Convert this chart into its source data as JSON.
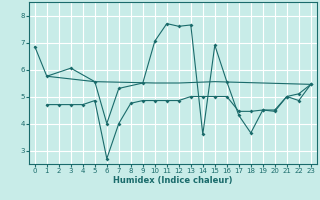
{
  "xlabel": "Humidex (Indice chaleur)",
  "bg_color": "#c8ece8",
  "grid_color": "#ffffff",
  "line_color": "#1a6b6b",
  "xlim": [
    -0.5,
    23.5
  ],
  "ylim": [
    2.5,
    8.5
  ],
  "yticks": [
    3,
    4,
    5,
    6,
    7,
    8
  ],
  "xticks": [
    0,
    1,
    2,
    3,
    4,
    5,
    6,
    7,
    8,
    9,
    10,
    11,
    12,
    13,
    14,
    15,
    16,
    17,
    18,
    19,
    20,
    21,
    22,
    23
  ],
  "series1": [
    [
      0,
      6.85
    ],
    [
      1,
      5.75
    ],
    [
      3,
      6.05
    ],
    [
      5,
      5.55
    ],
    [
      6,
      4.0
    ],
    [
      7,
      5.3
    ],
    [
      9,
      5.5
    ],
    [
      10,
      7.05
    ],
    [
      11,
      7.7
    ],
    [
      12,
      7.6
    ],
    [
      13,
      7.65
    ],
    [
      14,
      3.6
    ],
    [
      15,
      6.9
    ],
    [
      16,
      5.55
    ],
    [
      17,
      4.3
    ],
    [
      18,
      3.65
    ],
    [
      19,
      4.5
    ],
    [
      20,
      4.45
    ],
    [
      21,
      5.0
    ],
    [
      22,
      4.85
    ],
    [
      23,
      5.45
    ]
  ],
  "series2": [
    [
      1,
      4.7
    ],
    [
      2,
      4.7
    ],
    [
      3,
      4.7
    ],
    [
      4,
      4.7
    ],
    [
      5,
      4.85
    ],
    [
      6,
      2.7
    ],
    [
      7,
      4.0
    ],
    [
      8,
      4.75
    ],
    [
      9,
      4.85
    ],
    [
      10,
      4.85
    ],
    [
      11,
      4.85
    ],
    [
      12,
      4.85
    ],
    [
      13,
      5.0
    ],
    [
      14,
      5.0
    ],
    [
      15,
      5.0
    ],
    [
      16,
      5.0
    ],
    [
      17,
      4.45
    ],
    [
      18,
      4.45
    ],
    [
      19,
      4.5
    ],
    [
      20,
      4.5
    ],
    [
      21,
      5.0
    ],
    [
      22,
      5.1
    ],
    [
      23,
      5.45
    ]
  ],
  "series3": [
    [
      1,
      5.75
    ],
    [
      5,
      5.55
    ],
    [
      10,
      5.5
    ],
    [
      12,
      5.5
    ],
    [
      15,
      5.55
    ],
    [
      19,
      5.5
    ],
    [
      23,
      5.45
    ]
  ]
}
